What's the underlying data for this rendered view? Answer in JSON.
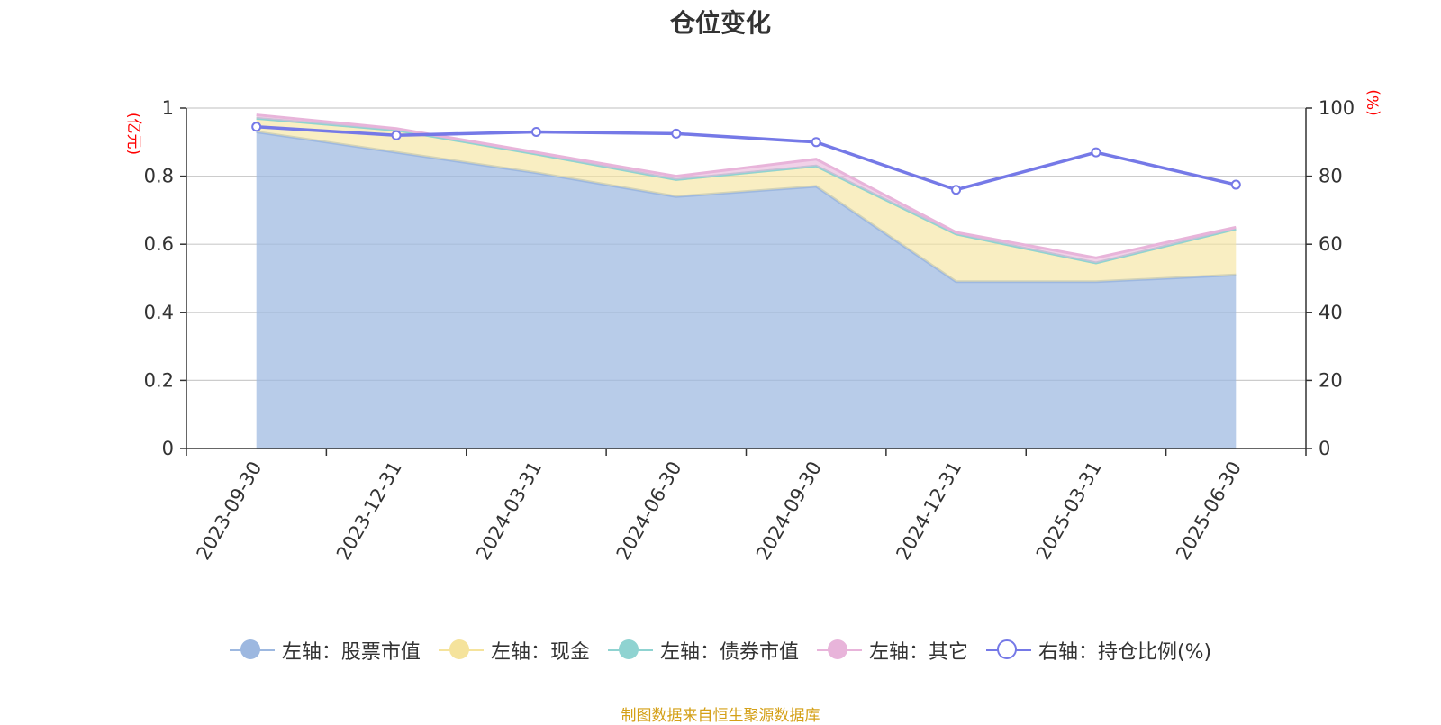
{
  "title": "仓位变化",
  "source_note": "制图数据来自恒生聚源数据库",
  "colors": {
    "stock": "#9db8e0",
    "cash": "#f5e39c",
    "bond": "#8fd3d1",
    "other": "#e8b4da",
    "ratio": "#7579e7",
    "unit": "#ff0000",
    "source": "#d4a017"
  },
  "legend": [
    {
      "label": "左轴：股票市值",
      "icon": "filled-circle",
      "color": "#9db8e0"
    },
    {
      "label": "左轴：现金",
      "icon": "filled-circle",
      "color": "#f5e39c"
    },
    {
      "label": "左轴：债券市值",
      "icon": "filled-circle",
      "color": "#8fd3d1"
    },
    {
      "label": "左轴：其它",
      "icon": "filled-circle",
      "color": "#e8b4da"
    },
    {
      "label": "右轴：持仓比例(%)",
      "icon": "hollow-circle",
      "color": "#7579e7"
    }
  ],
  "chart_data": {
    "type": "area",
    "title": "仓位变化",
    "categories": [
      "2023-09-30",
      "2023-12-31",
      "2024-03-31",
      "2024-06-30",
      "2024-09-30",
      "2024-12-31",
      "2025-03-31",
      "2025-06-30"
    ],
    "y_left": {
      "label": "(亿元)",
      "ylim": [
        0,
        1
      ],
      "ticks": [
        "0",
        "0.2",
        "0.4",
        "0.6",
        "0.8",
        "1"
      ]
    },
    "y_right": {
      "label": "(%)",
      "ylim": [
        0,
        100
      ],
      "ticks": [
        "0",
        "20",
        "40",
        "60",
        "80",
        "100"
      ]
    },
    "stacked": true,
    "grid": true,
    "legend_position": "bottom",
    "series": [
      {
        "name": "左轴：股票市值",
        "axis": "left",
        "type": "area",
        "values": [
          0.93,
          0.87,
          0.81,
          0.74,
          0.77,
          0.49,
          0.49,
          0.51
        ]
      },
      {
        "name": "左轴：现金",
        "axis": "left",
        "type": "area",
        "values": [
          0.04,
          0.065,
          0.055,
          0.05,
          0.06,
          0.14,
          0.055,
          0.135
        ]
      },
      {
        "name": "左轴：债券市值",
        "axis": "left",
        "type": "area",
        "values": [
          0,
          0,
          0,
          0,
          0,
          0,
          0,
          0
        ]
      },
      {
        "name": "左轴：其它",
        "axis": "left",
        "type": "area",
        "values": [
          0.01,
          0.005,
          0.005,
          0.01,
          0.02,
          0.005,
          0.015,
          0.005
        ]
      },
      {
        "name": "右轴：持仓比例(%)",
        "axis": "right",
        "type": "line",
        "values": [
          94.5,
          92.0,
          93.0,
          92.5,
          90.0,
          76.0,
          87.0,
          77.5
        ]
      }
    ]
  }
}
